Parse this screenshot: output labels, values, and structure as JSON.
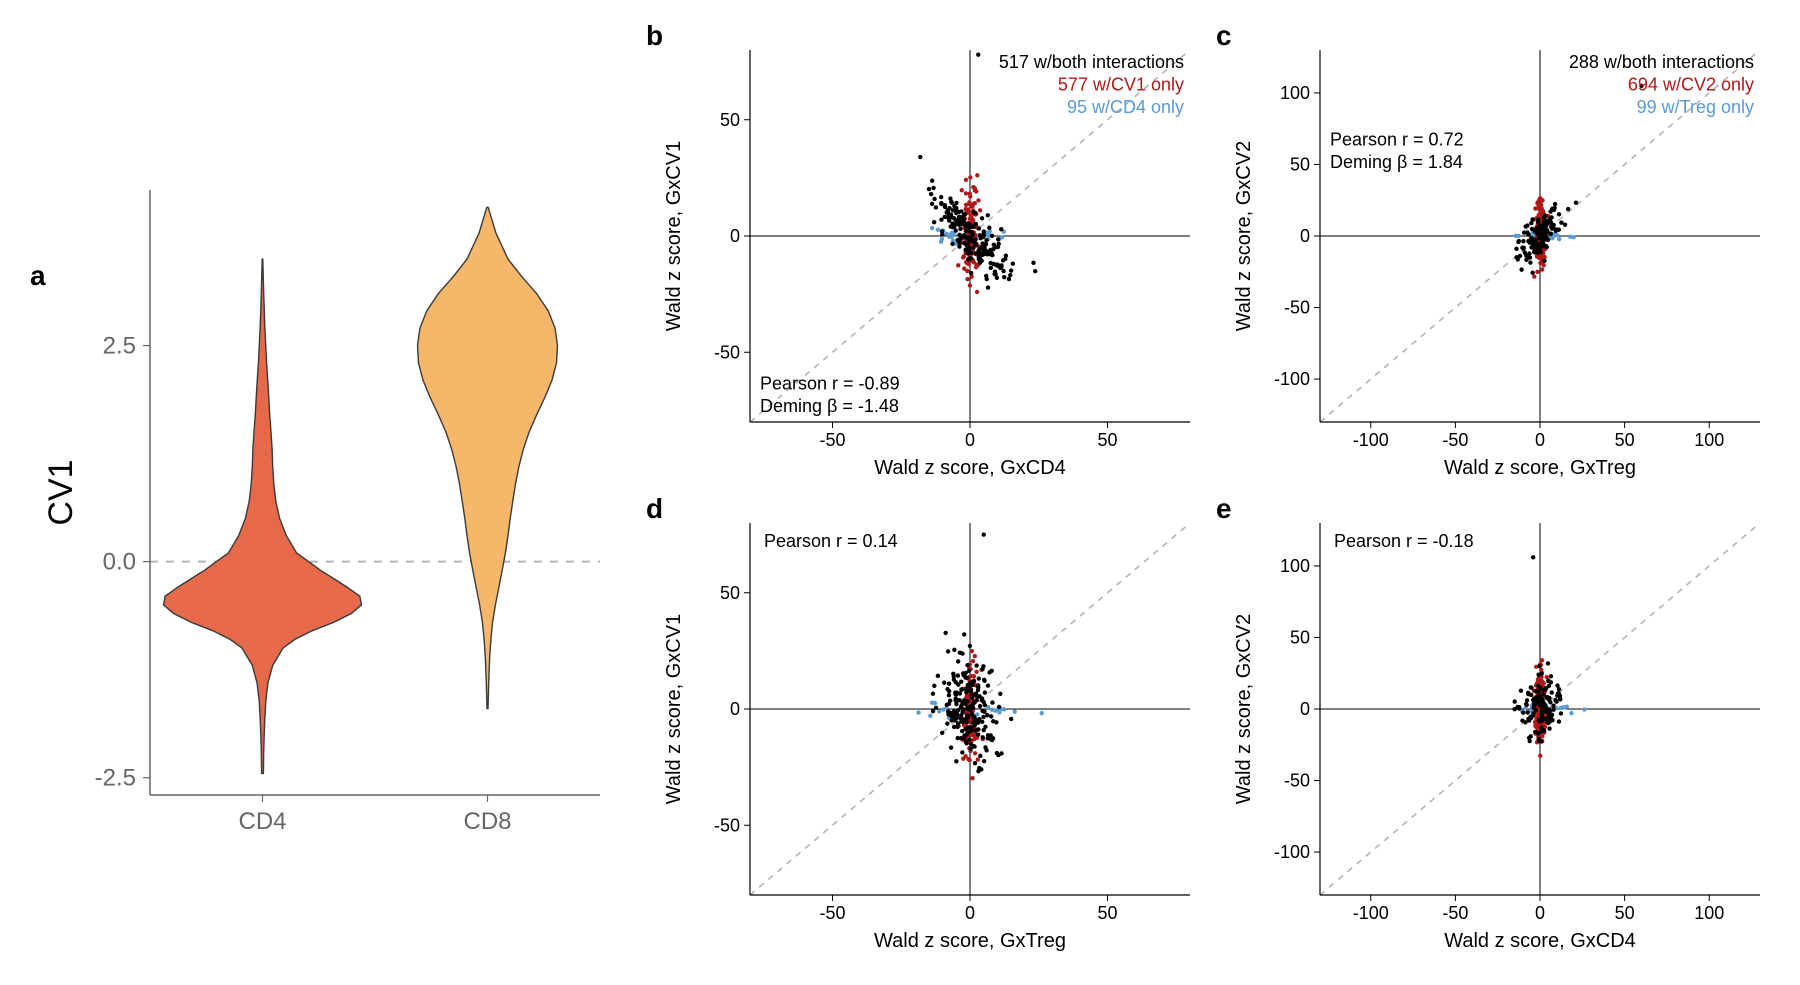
{
  "panel_a": {
    "label": "a",
    "type": "violin",
    "ylabel": "CV1",
    "categories": [
      "CD4",
      "CD8"
    ],
    "ylim": [
      -2.7,
      4.3
    ],
    "yticks": [
      -2.5,
      0.0,
      2.5
    ],
    "hline_y": 0.0,
    "hline_color": "#b3b3b3",
    "hline_dash": "8,8",
    "axis_text_color": "#666666",
    "axis_title_color": "#000000",
    "title_fontsize": 34,
    "tick_fontsize": 24,
    "background_color": "#ffffff",
    "panel_border_color": "#666666",
    "violins": [
      {
        "name": "CD4",
        "fill": "#e6694a",
        "stroke": "#3a3a3a",
        "stroke_width": 1.4,
        "points_y": [
          -2.45,
          -2.2,
          -2.0,
          -1.8,
          -1.6,
          -1.4,
          -1.2,
          -1.0,
          -0.9,
          -0.8,
          -0.7,
          -0.6,
          -0.5,
          -0.4,
          -0.3,
          -0.2,
          -0.1,
          0.0,
          0.1,
          0.3,
          0.5,
          0.7,
          0.9,
          1.1,
          1.3,
          1.5,
          1.7,
          2.0,
          2.3,
          2.7,
          3.1,
          3.5
        ],
        "half_width": [
          0.005,
          0.007,
          0.01,
          0.014,
          0.02,
          0.032,
          0.06,
          0.12,
          0.19,
          0.29,
          0.42,
          0.52,
          0.58,
          0.57,
          0.5,
          0.42,
          0.34,
          0.27,
          0.2,
          0.14,
          0.1,
          0.078,
          0.066,
          0.06,
          0.056,
          0.05,
          0.042,
          0.034,
          0.024,
          0.014,
          0.007,
          0.002
        ]
      },
      {
        "name": "CD8",
        "fill": "#f6b76a",
        "stroke": "#3a3a3a",
        "stroke_width": 1.4,
        "points_y": [
          -1.7,
          -1.4,
          -1.1,
          -0.9,
          -0.7,
          -0.5,
          -0.3,
          -0.1,
          0.1,
          0.3,
          0.5,
          0.7,
          0.9,
          1.1,
          1.3,
          1.5,
          1.7,
          1.9,
          2.1,
          2.3,
          2.5,
          2.7,
          2.9,
          3.1,
          3.3,
          3.5,
          3.8,
          4.1
        ],
        "half_width": [
          0.003,
          0.007,
          0.013,
          0.02,
          0.03,
          0.046,
          0.066,
          0.086,
          0.105,
          0.12,
          0.133,
          0.148,
          0.164,
          0.184,
          0.21,
          0.244,
          0.288,
          0.336,
          0.378,
          0.404,
          0.41,
          0.396,
          0.356,
          0.288,
          0.2,
          0.12,
          0.05,
          0.004
        ]
      }
    ]
  },
  "panel_b": {
    "label": "b",
    "type": "scatter",
    "xlabel": "Wald z score, GxCD4",
    "ylabel": "Wald z score, GxCV1",
    "xlim": [
      -80,
      80
    ],
    "ylim": [
      -80,
      80
    ],
    "xticks": [
      -50,
      0,
      50
    ],
    "yticks": [
      -50,
      0,
      50
    ],
    "diag_dash": "6,6",
    "diag_color": "#b3b3b3",
    "axis_line_color": "#000000",
    "point_size": 2.2,
    "annotations_topright": [
      {
        "text": "517 w/both interactions",
        "color": "#000000"
      },
      {
        "text": "577 w/CV1 only",
        "color": "#b01919"
      },
      {
        "text": "95 w/CD4 only",
        "color": "#5a9bd5"
      }
    ],
    "annotations_bottomleft": [
      {
        "text": "Pearson r = -0.89",
        "color": "#000000"
      },
      {
        "text": "Deming β = -1.48",
        "color": "#000000"
      }
    ],
    "cloud": {
      "colors": {
        "both": "#000000",
        "v_only": "#b01919",
        "h_only": "#5a9bd5"
      },
      "n_both": 200,
      "n_v": 110,
      "n_h": 25,
      "slope": -1.4,
      "sd_along": 11,
      "sd_perp": 3.5,
      "v_sd": 9,
      "h_sd": 9
    },
    "label_fontsize": 20,
    "tick_fontsize": 18,
    "annot_fontsize": 18
  },
  "panel_c": {
    "label": "c",
    "type": "scatter",
    "xlabel": "Wald z score, GxTreg",
    "ylabel": "Wald z score, GxCV2",
    "xlim": [
      -130,
      130
    ],
    "ylim": [
      -130,
      130
    ],
    "xticks": [
      -100,
      -50,
      0,
      50,
      100
    ],
    "yticks": [
      -100,
      -50,
      0,
      50,
      100
    ],
    "diag_dash": "6,6",
    "diag_color": "#b3b3b3",
    "axis_line_color": "#000000",
    "point_size": 2.2,
    "annotations_topright": [
      {
        "text": "288 w/both interactions",
        "color": "#000000"
      },
      {
        "text": "694 w/CV2 only",
        "color": "#b01919"
      },
      {
        "text": "99 w/Treg only",
        "color": "#5a9bd5"
      }
    ],
    "annotations_bottomleft_shifted": [
      {
        "text": "Pearson r = 0.72",
        "color": "#000000"
      },
      {
        "text": "Deming β = 1.84",
        "color": "#000000"
      }
    ],
    "cloud": {
      "colors": {
        "both": "#000000",
        "v_only": "#b01919",
        "h_only": "#5a9bd5"
      },
      "n_both": 140,
      "n_v": 180,
      "n_h": 25,
      "slope": 1.8,
      "sd_along": 9,
      "sd_perp": 4.5,
      "v_sd": 11,
      "h_sd": 9
    },
    "label_fontsize": 20,
    "tick_fontsize": 18,
    "annot_fontsize": 18
  },
  "panel_d": {
    "label": "d",
    "type": "scatter",
    "xlabel": "Wald z score, GxTreg",
    "ylabel": "Wald z score, GxCV1",
    "xlim": [
      -80,
      80
    ],
    "ylim": [
      -80,
      80
    ],
    "xticks": [
      -50,
      0,
      50
    ],
    "yticks": [
      -50,
      0,
      50
    ],
    "diag_dash": "6,6",
    "diag_color": "#b3b3b3",
    "axis_line_color": "#000000",
    "point_size": 2.2,
    "annotations_topleft": [
      {
        "text": "Pearson r = 0.14",
        "color": "#000000"
      }
    ],
    "cloud": {
      "colors": {
        "both": "#000000",
        "v_only": "#b01919",
        "h_only": "#5a9bd5"
      },
      "n_both": 200,
      "n_v": 110,
      "n_h": 25,
      "slope": 0.15,
      "sd_along": 5,
      "sd_perp": 11,
      "v_sd": 11,
      "h_sd": 9
    },
    "label_fontsize": 20,
    "tick_fontsize": 18,
    "annot_fontsize": 18
  },
  "panel_e": {
    "label": "e",
    "type": "scatter",
    "xlabel": "Wald z score, GxCD4",
    "ylabel": "Wald z score, GxCV2",
    "xlim": [
      -130,
      130
    ],
    "ylim": [
      -130,
      130
    ],
    "xticks": [
      -100,
      -50,
      0,
      50,
      100
    ],
    "yticks": [
      -100,
      -50,
      0,
      50,
      100
    ],
    "diag_dash": "6,6",
    "diag_color": "#b3b3b3",
    "axis_line_color": "#000000",
    "point_size": 2.2,
    "annotations_topleft": [
      {
        "text": "Pearson r = -0.18",
        "color": "#000000"
      }
    ],
    "cloud": {
      "colors": {
        "both": "#000000",
        "v_only": "#b01919",
        "h_only": "#5a9bd5"
      },
      "n_both": 140,
      "n_v": 180,
      "n_h": 25,
      "slope": -0.2,
      "sd_along": 6,
      "sd_perp": 11,
      "v_sd": 12,
      "h_sd": 9
    },
    "label_fontsize": 20,
    "tick_fontsize": 18,
    "annot_fontsize": 18
  }
}
